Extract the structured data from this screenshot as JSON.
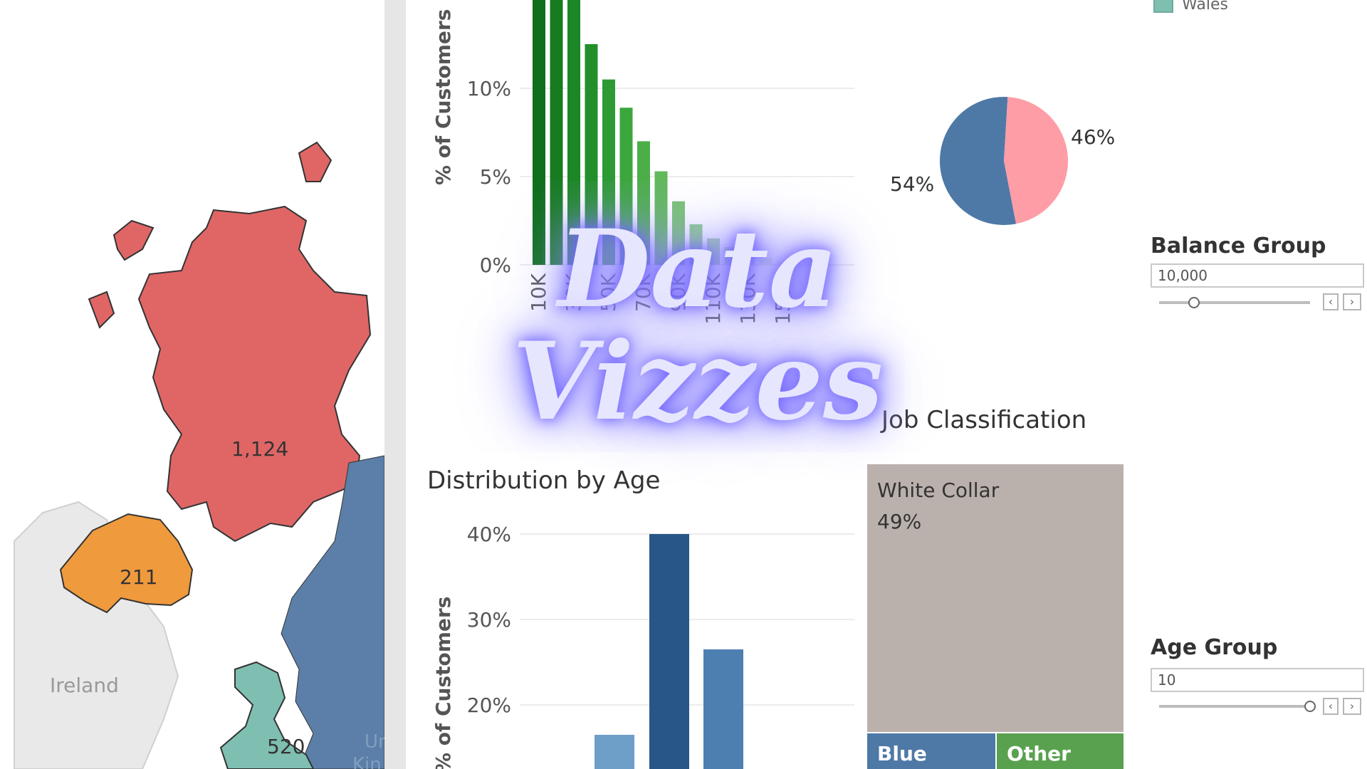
{
  "overlay": {
    "line1": "Data",
    "line2": "Vizzes"
  },
  "map": {
    "regions": [
      {
        "name": "Scotland",
        "value": "1,124",
        "color": "#e06666"
      },
      {
        "name": "Northern Ireland",
        "value": "211",
        "color": "#f09a3e"
      },
      {
        "name": "England",
        "value": "",
        "color": "#5b7fa8"
      },
      {
        "name": "Wales",
        "value": "520",
        "color": "#7fbfb2"
      }
    ],
    "ireland_label": "Ireland",
    "uk_label_1": "Un",
    "uk_label_2": "Kin"
  },
  "legend": {
    "wales_label": "Wales",
    "wales_color": "#7fbfb2"
  },
  "filters": {
    "balance_group": {
      "label": "Balance Group",
      "value": "10,000",
      "slider_fraction": 0.23
    },
    "age_group": {
      "label": "Age Group",
      "value": "10",
      "slider_fraction": 1.0
    }
  },
  "chart_data": [
    {
      "type": "bar",
      "title": "",
      "ylabel": "% of Customers",
      "ylim": [
        0,
        15
      ],
      "yticks": [
        "0%",
        "5%",
        "10%"
      ],
      "xticks": [
        "10K",
        "30K",
        "50K",
        "70K",
        "90K",
        "110K",
        "130K",
        "150K"
      ],
      "values": [
        15,
        15,
        15,
        12.5,
        10.5,
        8.9,
        7,
        5.3,
        3.6,
        2.3,
        1.5,
        1.0,
        0.7,
        0.4,
        0.2,
        0.1
      ],
      "colors": [
        "#0f6f1d",
        "#167b21",
        "#1c8726",
        "#238f2b",
        "#2e9a33",
        "#3ba63c",
        "#4cae49",
        "#60b95b",
        "#76c26f",
        "#8ccd85",
        "#a3d89b",
        "#b8e1b1",
        "#cbe9c5",
        "#dbf0d7",
        "#e7f5e4",
        "#f0f9ee"
      ]
    },
    {
      "type": "pie",
      "slices": [
        {
          "label": "54%",
          "value": 54,
          "color": "#4e79a7"
        },
        {
          "label": "46%",
          "value": 46,
          "color": "#ff9da7"
        }
      ]
    },
    {
      "type": "bar",
      "title": "Distribution by Age",
      "ylabel": "% of Customers",
      "ylim": [
        15,
        45
      ],
      "yticks": [
        "20%",
        "30%",
        "40%"
      ],
      "values": [
        16.5,
        40,
        26.5
      ],
      "colors": [
        "#6d9fc9",
        "#295689",
        "#4e7fb1"
      ]
    },
    {
      "type": "heatmap",
      "title": "Job Classification",
      "cells": [
        {
          "label": "White Collar",
          "pct": "49%",
          "color": "#bbb1ac"
        },
        {
          "label": "Blue",
          "pct": "",
          "color": "#4e79a7"
        },
        {
          "label": "Other",
          "pct": "",
          "color": "#59a14f"
        }
      ]
    }
  ]
}
